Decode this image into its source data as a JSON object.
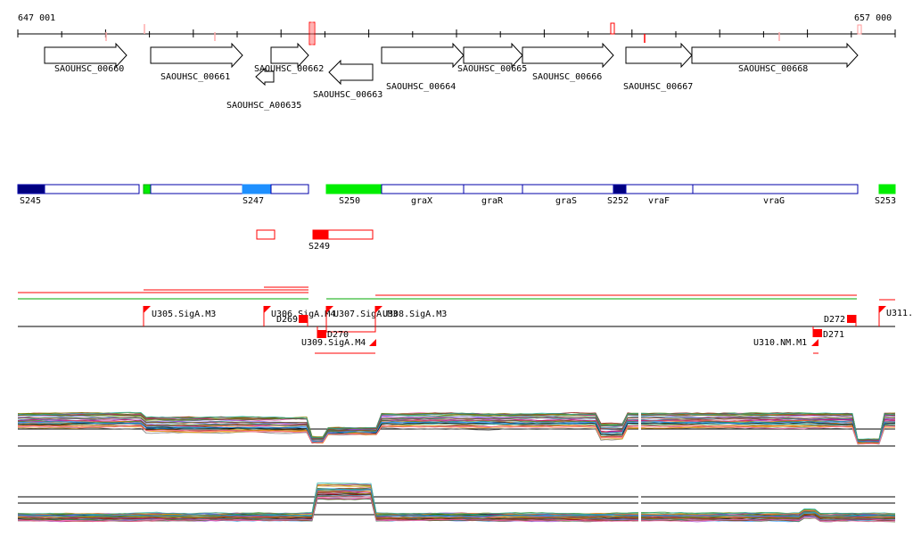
{
  "ruler": {
    "start_label": "647 001",
    "end_label": "657 000"
  },
  "genes": [
    {
      "label": "SAOUHSC_00660",
      "strand": "+"
    },
    {
      "label": "SAOUHSC_00661",
      "strand": "+"
    },
    {
      "label": "SAOUHSC_00662",
      "strand": "+"
    },
    {
      "label": "SAOUHSC_A00635",
      "strand": "-"
    },
    {
      "label": "SAOUHSC_00663",
      "strand": "-"
    },
    {
      "label": "SAOUHSC_00664",
      "strand": "+"
    },
    {
      "label": "SAOUHSC_00665",
      "strand": "+"
    },
    {
      "label": "SAOUHSC_00666",
      "strand": "+"
    },
    {
      "label": "SAOUHSC_00667",
      "strand": "+"
    },
    {
      "label": "SAOUHSC_00668",
      "strand": "+"
    }
  ],
  "segments": [
    {
      "label": "S245",
      "color": "#000080"
    },
    {
      "label": "S247",
      "color": "#1e90ff"
    },
    {
      "label": "S250",
      "color": "#00ee00"
    },
    {
      "label": "graX",
      "color": "#ffffff"
    },
    {
      "label": "graR",
      "color": "#ffffff"
    },
    {
      "label": "graS",
      "color": "#ffffff"
    },
    {
      "label": "S252",
      "color": "#000080"
    },
    {
      "label": "vraF",
      "color": "#ffffff"
    },
    {
      "label": "vraG",
      "color": "#ffffff"
    },
    {
      "label": "S253",
      "color": "#00ee00"
    }
  ],
  "red_segment": {
    "label": "S249",
    "color": "#ff0000"
  },
  "promoters": [
    {
      "label": "U305.SigA.M3"
    },
    {
      "label": "U306.SigA.M4"
    },
    {
      "label": "U307.SigA.M3"
    },
    {
      "label": "U308.SigA.M3"
    },
    {
      "label": "U309.SigA.M4"
    },
    {
      "label": "U310.NM.M1"
    },
    {
      "label": "U311."
    }
  ],
  "terminators": [
    {
      "label": "D269"
    },
    {
      "label": "D270"
    },
    {
      "label": "D271"
    },
    {
      "label": "D272"
    }
  ],
  "colors": {
    "gene_outline": "#000000",
    "segment_outline": "#0000aa",
    "feature_red": "#ff0000",
    "feature_green": "#00aa00",
    "tick_marks": "#ffaaaa"
  }
}
